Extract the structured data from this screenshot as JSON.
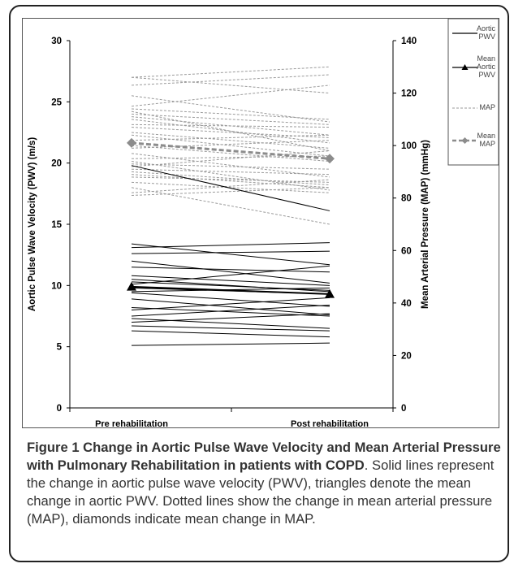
{
  "chart_data": {
    "type": "line",
    "categories": [
      "Pre rehabilitation",
      "Post rehabilitation"
    ],
    "left_axis": {
      "label": "Aortic Pulse Wave Velocity (PWV) (m/s)",
      "ylim": [
        0,
        30
      ],
      "ticks": [
        "0",
        "5",
        "10",
        "15",
        "20",
        "25",
        "30"
      ]
    },
    "right_axis": {
      "label": "Mean Arterial Pressure (MAP) (mmHg)",
      "ylim": [
        0,
        140
      ],
      "ticks": [
        "0",
        "20",
        "40",
        "60",
        "80",
        "100",
        "120",
        "140"
      ]
    },
    "pwv_individual": [
      [
        13.4,
        11.7
      ],
      [
        13.1,
        13.5
      ],
      [
        12.6,
        12.8
      ],
      [
        12.0,
        10.2
      ],
      [
        11.5,
        11.1
      ],
      [
        10.8,
        10.0
      ],
      [
        10.5,
        9.5
      ],
      [
        10.3,
        9.6
      ],
      [
        10.1,
        11.6
      ],
      [
        9.8,
        9.3
      ],
      [
        9.5,
        9.8
      ],
      [
        9.4,
        8.3
      ],
      [
        8.9,
        7.6
      ],
      [
        8.2,
        7.5
      ],
      [
        8.0,
        9.0
      ],
      [
        7.5,
        8.4
      ],
      [
        7.3,
        6.5
      ],
      [
        7.0,
        7.7
      ],
      [
        6.7,
        6.3
      ],
      [
        6.3,
        5.8
      ],
      [
        5.1,
        5.3
      ],
      [
        19.8,
        16.1
      ]
    ],
    "pwv_mean": [
      9.9,
      9.3
    ],
    "map_individual": [
      [
        126,
        120
      ],
      [
        123,
        127
      ],
      [
        119,
        109
      ],
      [
        115,
        123
      ],
      [
        114,
        110
      ],
      [
        113,
        98
      ],
      [
        112,
        108
      ],
      [
        111,
        104
      ],
      [
        110,
        101
      ],
      [
        108,
        107
      ],
      [
        107,
        103
      ],
      [
        105,
        99
      ],
      [
        104,
        96
      ],
      [
        102,
        104
      ],
      [
        100,
        94
      ],
      [
        99,
        102
      ],
      [
        97,
        88
      ],
      [
        95,
        96
      ],
      [
        94,
        83
      ],
      [
        93,
        91
      ],
      [
        92,
        98
      ],
      [
        91,
        89
      ],
      [
        90,
        85
      ],
      [
        89,
        84
      ],
      [
        88,
        86
      ],
      [
        86,
        82
      ],
      [
        84,
        70
      ],
      [
        82,
        87
      ],
      [
        81,
        84
      ],
      [
        126,
        130
      ]
    ],
    "map_mean": [
      101,
      95
    ],
    "legend": [
      {
        "name": "Aortic PWV",
        "lines": [
          "Aortic",
          "PWV"
        ],
        "style": "solid"
      },
      {
        "name": "Mean Aortic PWV",
        "lines": [
          "Mean",
          "Aortic",
          "PWV"
        ],
        "style": "solid-triangle"
      },
      {
        "name": "MAP",
        "lines": [
          "MAP"
        ],
        "style": "dotted"
      },
      {
        "name": "Mean MAP",
        "lines": [
          "Mean",
          "MAP"
        ],
        "style": "dashed-diamond"
      }
    ],
    "legend_position": "top-right",
    "grid": false,
    "colors": {
      "pwv": "#000000",
      "map": "#9a9a9a",
      "map_mean": "#8c8c8c"
    }
  },
  "caption": {
    "title": "Figure 1 Change in Aortic Pulse Wave Velocity and Mean Arterial Pressure with Pulmonary Rehabilitation in patients with COPD",
    "text": ". Solid lines represent the change in aortic pulse wave velocity (PWV), triangles denote the mean change in aortic PWV. Dotted lines show the change in mean arterial pressure (MAP), diamonds indicate mean change in MAP."
  }
}
